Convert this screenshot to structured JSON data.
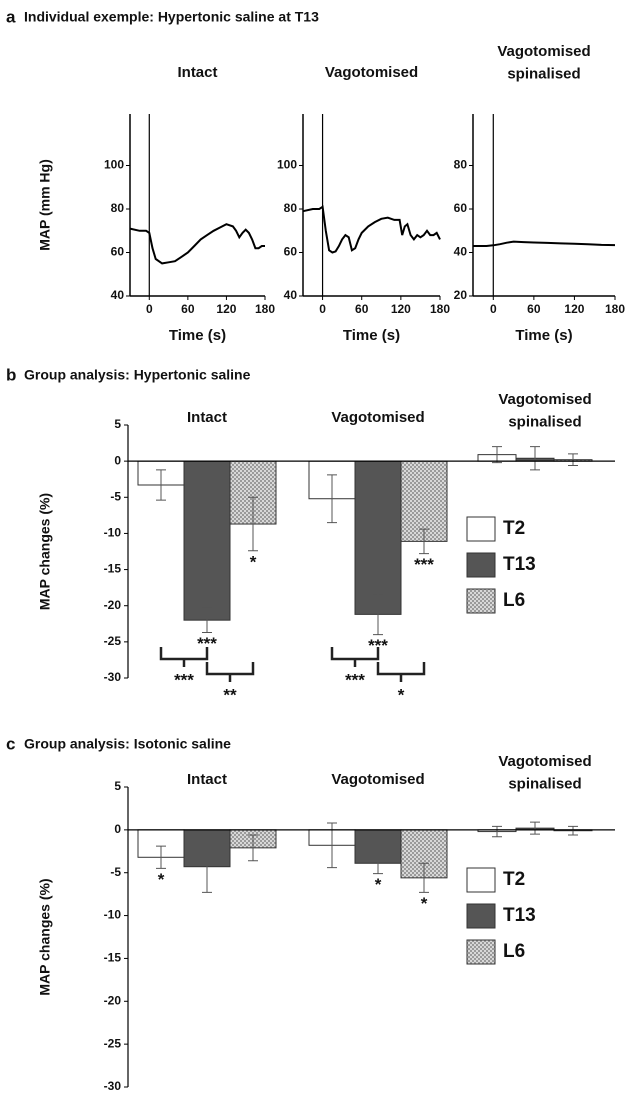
{
  "chart_data": [
    {
      "type": "line",
      "panel_label": "a",
      "title": "Individual exemple: Hypertonic saline at T13",
      "subtitle": "Intact",
      "ylabel": "MAP (mm Hg)",
      "xlabel": "Time (s)",
      "x": [
        -30,
        -15,
        -5,
        0,
        5,
        10,
        20,
        30,
        40,
        50,
        60,
        70,
        80,
        90,
        100,
        110,
        120,
        130,
        135,
        140,
        145,
        150,
        155,
        160,
        165,
        170,
        175,
        180
      ],
      "values": [
        71,
        70,
        70,
        69,
        62,
        57,
        55,
        55.5,
        56,
        58,
        60,
        63,
        66,
        68,
        70,
        71.5,
        73,
        72,
        70,
        67,
        69,
        70.5,
        69,
        66,
        62,
        62,
        63,
        63
      ],
      "xlim": [
        -30,
        180
      ],
      "xticks": [
        0,
        60,
        120,
        180
      ],
      "ylim": [
        40,
        120
      ],
      "yticks": [
        40,
        60,
        80,
        100
      ],
      "color": "#000000"
    },
    {
      "type": "line",
      "subtitle": "Vagotomised",
      "xlabel": "Time (s)",
      "x": [
        -30,
        -15,
        -5,
        0,
        5,
        10,
        15,
        20,
        25,
        30,
        35,
        40,
        45,
        50,
        55,
        60,
        70,
        80,
        90,
        100,
        110,
        118,
        122,
        126,
        130,
        135,
        140,
        145,
        150,
        155,
        160,
        165,
        170,
        175,
        180
      ],
      "values": [
        79,
        80,
        80,
        81,
        70,
        61,
        60,
        60.5,
        63,
        66,
        68,
        67,
        61,
        62,
        66,
        69,
        72,
        74,
        75.5,
        76,
        75,
        75,
        68,
        72,
        73,
        68,
        66,
        68,
        67,
        68,
        70,
        68,
        68,
        69,
        66
      ],
      "xlim": [
        -30,
        180
      ],
      "xticks": [
        0,
        60,
        120,
        180
      ],
      "ylim": [
        40,
        120
      ],
      "yticks": [
        40,
        60,
        80,
        100
      ],
      "color": "#000000"
    },
    {
      "type": "line",
      "subtitle": "Vagotomised\nspinalised",
      "xlabel": "Time (s)",
      "x": [
        -30,
        -10,
        0,
        10,
        20,
        30,
        45,
        60,
        80,
        100,
        120,
        140,
        160,
        180
      ],
      "values": [
        43,
        43,
        43.3,
        43.8,
        44.5,
        45,
        44.8,
        44.6,
        44.4,
        44.2,
        44,
        43.8,
        43.5,
        43.4
      ],
      "xlim": [
        -30,
        180
      ],
      "xticks": [
        0,
        60,
        120,
        180
      ],
      "ylim": [
        20,
        100
      ],
      "yticks": [
        20,
        40,
        60,
        80
      ],
      "color": "#000000"
    },
    {
      "type": "bar",
      "panel_label": "b",
      "title": "Group analysis: Hypertonic saline",
      "ylabel": "MAP changes (%)",
      "categories": [
        "Intact",
        "Vagotomised",
        "Vagotomised\nspinalised"
      ],
      "series": [
        {
          "name": "T2",
          "color": "#ffffff",
          "values": [
            -3.3,
            -5.2,
            0.9
          ],
          "errors": [
            2.1,
            3.3,
            1.1
          ],
          "stars": [
            null,
            null,
            null
          ]
        },
        {
          "name": "T13",
          "color": "#555555",
          "values": [
            -22,
            -21.2,
            0.4
          ],
          "errors": [
            1.7,
            2.8,
            1.6
          ],
          "stars": [
            "***",
            "***",
            null
          ]
        },
        {
          "name": "L6",
          "color": "#bdbdbd",
          "pattern": "checker",
          "values": [
            -8.7,
            -11.1,
            0.2
          ],
          "errors": [
            3.7,
            1.7,
            0.8
          ],
          "stars": [
            "*",
            "***",
            null
          ]
        }
      ],
      "brackets": [
        [
          "***",
          "**"
        ],
        [
          "***",
          "*"
        ],
        []
      ],
      "ylim": [
        -30,
        5
      ],
      "yticks": [
        -30,
        -25,
        -20,
        -15,
        -10,
        -5,
        0,
        5
      ],
      "legend": "right"
    },
    {
      "type": "bar",
      "panel_label": "c",
      "title": "Group analysis: Isotonic saline",
      "ylabel": "MAP changes (%)",
      "categories": [
        "Intact",
        "Vagotomised",
        "Vagotomised\nspinalised"
      ],
      "series": [
        {
          "name": "T2",
          "color": "#ffffff",
          "values": [
            -3.2,
            -1.8,
            -0.2
          ],
          "errors": [
            1.3,
            2.6,
            0.6
          ],
          "stars": [
            "*",
            null,
            null
          ]
        },
        {
          "name": "T13",
          "color": "#555555",
          "values": [
            -4.3,
            -3.9,
            0.2
          ],
          "errors": [
            3.0,
            1.2,
            0.7
          ],
          "stars": [
            null,
            "*",
            null
          ]
        },
        {
          "name": "L6",
          "color": "#bdbdbd",
          "pattern": "checker",
          "values": [
            -2.1,
            -5.6,
            -0.1
          ],
          "errors": [
            1.5,
            1.7,
            0.5
          ],
          "stars": [
            null,
            "*",
            null
          ]
        }
      ],
      "ylim": [
        -30,
        5
      ],
      "yticks": [
        -30,
        -25,
        -20,
        -15,
        -10,
        -5,
        0,
        5
      ],
      "legend": "right"
    }
  ]
}
